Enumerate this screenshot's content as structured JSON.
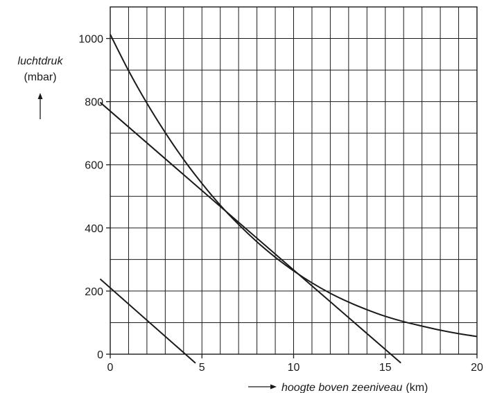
{
  "chart_data": {
    "type": "line",
    "xlabel": {
      "italic": "hoogte boven zeeniveau",
      "unit": "(km)"
    },
    "ylabel": {
      "italic": "luchtdruk",
      "unit": "(mbar)"
    },
    "xlim": [
      0,
      20
    ],
    "ylim": [
      0,
      1000
    ],
    "x_ticks": [
      "0",
      "5",
      "10",
      "15",
      "20"
    ],
    "y_ticks": [
      "0",
      "200",
      "400",
      "600",
      "800",
      "1000"
    ],
    "grid": true,
    "grid_x_step_km": 1,
    "grid_y_step_mbar": 100,
    "series": [
      {
        "kind": "curve",
        "x": [
          0,
          1,
          2,
          3,
          4,
          5,
          6,
          7,
          8,
          9,
          10,
          11,
          12,
          13,
          14,
          15,
          16,
          17,
          18,
          19,
          20
        ],
        "y": [
          1013,
          898,
          795,
          702,
          617,
          541,
          472,
          411,
          356,
          307,
          264,
          226,
          193,
          165,
          141,
          120,
          103,
          89,
          76,
          65,
          56
        ]
      },
      {
        "kind": "straight-line",
        "x": [
          0,
          15.3
        ],
        "y": [
          770,
          0
        ]
      },
      {
        "kind": "straight-line",
        "x": [
          0,
          4.1
        ],
        "y": [
          210,
          0
        ]
      }
    ]
  }
}
